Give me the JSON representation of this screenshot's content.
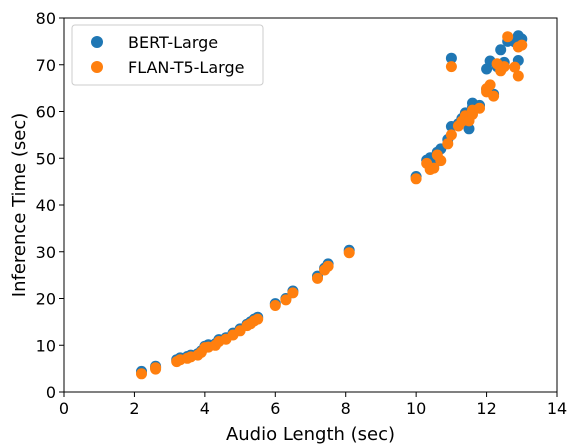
{
  "chart_data": {
    "type": "scatter",
    "xlabel": "Audio Length (sec)",
    "ylabel": "Inference Time (sec)",
    "xlim": [
      0,
      14
    ],
    "ylim": [
      0,
      80
    ],
    "xticks": [
      "0",
      "2",
      "4",
      "6",
      "8",
      "10",
      "12",
      "14"
    ],
    "yticks": [
      "0",
      "10",
      "20",
      "30",
      "40",
      "50",
      "60",
      "70",
      "80"
    ],
    "grid": false,
    "legend_position": "top-left",
    "series": [
      {
        "name": "BERT-Large",
        "color": "#1f77b4",
        "points": [
          [
            2.2,
            4.4
          ],
          [
            2.6,
            5.2
          ],
          [
            2.6,
            5.5
          ],
          [
            3.2,
            6.9
          ],
          [
            3.3,
            7.3
          ],
          [
            3.5,
            7.6
          ],
          [
            3.6,
            7.9
          ],
          [
            3.8,
            8.2
          ],
          [
            3.9,
            8.8
          ],
          [
            4.0,
            9.8
          ],
          [
            4.1,
            10.1
          ],
          [
            4.3,
            10.3
          ],
          [
            4.4,
            11.2
          ],
          [
            4.6,
            11.6
          ],
          [
            4.8,
            12.6
          ],
          [
            5.0,
            13.5
          ],
          [
            5.2,
            14.5
          ],
          [
            5.3,
            15.0
          ],
          [
            5.4,
            15.6
          ],
          [
            5.5,
            16.0
          ],
          [
            6.0,
            18.9
          ],
          [
            6.3,
            20.0
          ],
          [
            6.5,
            21.6
          ],
          [
            7.2,
            24.8
          ],
          [
            7.4,
            26.5
          ],
          [
            7.5,
            27.4
          ],
          [
            8.1,
            30.3
          ],
          [
            10.0,
            46.1
          ],
          [
            10.3,
            49.6
          ],
          [
            10.4,
            50.1
          ],
          [
            10.5,
            48.5
          ],
          [
            10.6,
            51.3
          ],
          [
            10.7,
            52.0
          ],
          [
            10.9,
            54.0
          ],
          [
            11.0,
            56.8
          ],
          [
            11.0,
            71.4
          ],
          [
            11.2,
            57.4
          ],
          [
            11.3,
            58.5
          ],
          [
            11.4,
            59.7
          ],
          [
            11.5,
            56.3
          ],
          [
            11.6,
            60.9
          ],
          [
            11.6,
            61.8
          ],
          [
            11.8,
            61.3
          ],
          [
            12.0,
            64.8
          ],
          [
            12.0,
            69.1
          ],
          [
            12.1,
            70.8
          ],
          [
            12.2,
            63.7
          ],
          [
            12.3,
            69.6
          ],
          [
            12.4,
            73.2
          ],
          [
            12.5,
            70.5
          ],
          [
            12.6,
            75.0
          ],
          [
            12.8,
            74.9
          ],
          [
            12.9,
            70.9
          ],
          [
            12.9,
            76.2
          ],
          [
            13.0,
            75.5
          ]
        ]
      },
      {
        "name": "FLAN-T5-Large",
        "color": "#ff7f0e",
        "points": [
          [
            2.2,
            3.9
          ],
          [
            2.6,
            4.9
          ],
          [
            2.6,
            5.2
          ],
          [
            3.2,
            6.5
          ],
          [
            3.3,
            6.9
          ],
          [
            3.5,
            7.2
          ],
          [
            3.6,
            7.5
          ],
          [
            3.8,
            7.9
          ],
          [
            3.9,
            8.5
          ],
          [
            4.0,
            9.5
          ],
          [
            4.1,
            9.6
          ],
          [
            4.3,
            10.0
          ],
          [
            4.4,
            10.8
          ],
          [
            4.6,
            11.3
          ],
          [
            4.8,
            12.2
          ],
          [
            5.0,
            13.1
          ],
          [
            5.2,
            14.2
          ],
          [
            5.3,
            14.6
          ],
          [
            5.4,
            15.2
          ],
          [
            5.5,
            15.6
          ],
          [
            6.0,
            18.5
          ],
          [
            6.3,
            19.7
          ],
          [
            6.5,
            21.2
          ],
          [
            7.2,
            24.3
          ],
          [
            7.4,
            26.1
          ],
          [
            7.5,
            26.9
          ],
          [
            8.1,
            29.8
          ],
          [
            10.0,
            45.6
          ],
          [
            10.3,
            48.9
          ],
          [
            10.4,
            47.6
          ],
          [
            10.5,
            47.9
          ],
          [
            10.6,
            50.7
          ],
          [
            10.7,
            49.5
          ],
          [
            10.9,
            53.1
          ],
          [
            11.0,
            55.0
          ],
          [
            11.0,
            69.6
          ],
          [
            11.2,
            56.9
          ],
          [
            11.3,
            57.9
          ],
          [
            11.4,
            59.1
          ],
          [
            11.5,
            58.0
          ],
          [
            11.6,
            60.3
          ],
          [
            11.6,
            59.4
          ],
          [
            11.8,
            60.7
          ],
          [
            12.0,
            64.2
          ],
          [
            12.0,
            64.9
          ],
          [
            12.1,
            65.7
          ],
          [
            12.2,
            63.3
          ],
          [
            12.3,
            70.2
          ],
          [
            12.4,
            68.7
          ],
          [
            12.5,
            69.6
          ],
          [
            12.6,
            76.0
          ],
          [
            12.8,
            69.5
          ],
          [
            12.9,
            67.6
          ],
          [
            12.9,
            73.8
          ],
          [
            13.0,
            74.2
          ]
        ]
      }
    ]
  }
}
